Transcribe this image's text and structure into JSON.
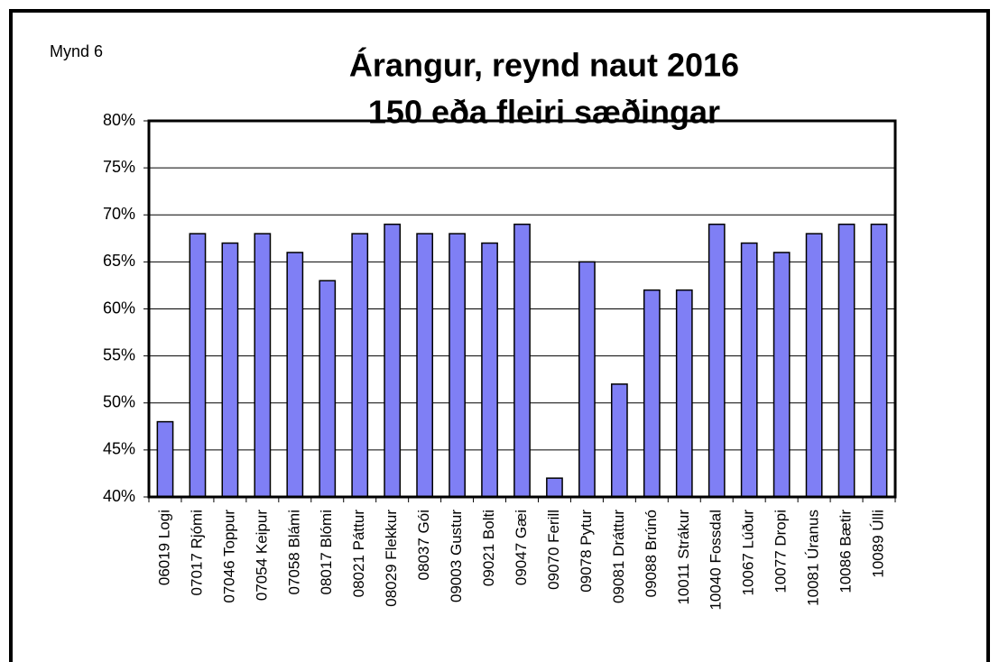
{
  "chart_data": {
    "type": "bar",
    "label": "Mynd 6",
    "title": "Árangur, reynd naut 2016",
    "subtitle": "150 eða fleiri sæðingar",
    "categories": [
      "06019 Logi",
      "07017 Rjómi",
      "07046 Toppur",
      "07054 Keipur",
      "07058 Blámi",
      "08017 Blómi",
      "08021 Páttur",
      "08029 Flekkur",
      "08037 Gói",
      "09003 Gustur",
      "09021 Bolti",
      "09047 Gæi",
      "09070 Ferill",
      "09078 Pytur",
      "09081 Dráttur",
      "09088 Brúnó",
      "10011 Strákur",
      "10040 Fossdal",
      "10067 Lúður",
      "10077 Dropi",
      "10081 Úranus",
      "10086 Bætir",
      "10089 Úlli"
    ],
    "values": [
      48,
      68,
      67,
      68,
      66,
      63,
      68,
      69,
      68,
      68,
      67,
      69,
      42,
      65,
      52,
      62,
      62,
      69,
      67,
      66,
      68,
      69,
      69
    ],
    "color": "#7f7ff5",
    "ylim": [
      40,
      80
    ],
    "yticks": [
      {
        "value": 40,
        "label": "40%"
      },
      {
        "value": 45,
        "label": "45%"
      },
      {
        "value": 50,
        "label": "50%"
      },
      {
        "value": 55,
        "label": "55%"
      },
      {
        "value": 60,
        "label": "60%"
      },
      {
        "value": 65,
        "label": "65%"
      },
      {
        "value": 70,
        "label": "70%"
      },
      {
        "value": 75,
        "label": "75%"
      },
      {
        "value": 80,
        "label": "80%"
      }
    ],
    "grid": true
  }
}
